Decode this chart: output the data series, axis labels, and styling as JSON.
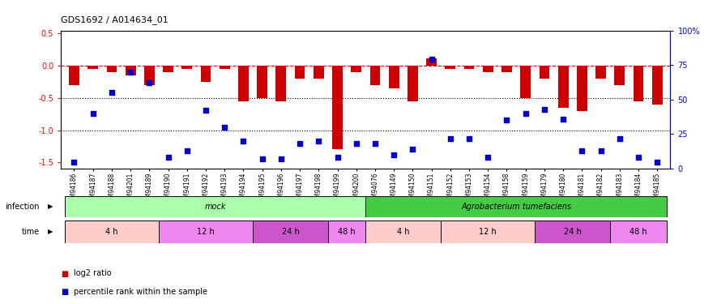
{
  "title": "GDS1692 / A014634_01",
  "samples": [
    "GSM94186",
    "GSM94187",
    "GSM94188",
    "GSM94201",
    "GSM94189",
    "GSM94190",
    "GSM94191",
    "GSM94192",
    "GSM94193",
    "GSM94194",
    "GSM94195",
    "GSM94196",
    "GSM94197",
    "GSM94198",
    "GSM94199",
    "GSM94200",
    "GSM94076",
    "GSM94149",
    "GSM94150",
    "GSM94151",
    "GSM94152",
    "GSM94153",
    "GSM94154",
    "GSM94158",
    "GSM94159",
    "GSM94179",
    "GSM94180",
    "GSM94181",
    "GSM94182",
    "GSM94183",
    "GSM94184",
    "GSM94185"
  ],
  "log2_ratio": [
    -0.3,
    -0.05,
    -0.1,
    -0.15,
    -0.3,
    -0.1,
    -0.05,
    -0.25,
    -0.05,
    -0.55,
    -0.5,
    -0.55,
    -0.2,
    -0.2,
    -1.3,
    -0.1,
    -0.3,
    -0.35,
    -0.55,
    0.12,
    -0.05,
    -0.05,
    -0.1,
    -0.1,
    -0.5,
    -0.2,
    -0.65,
    -0.7,
    -0.2,
    -0.3,
    -0.55,
    -0.6
  ],
  "percentile_rank": [
    5,
    40,
    55,
    70,
    62,
    8,
    13,
    42,
    30,
    20,
    7,
    7,
    18,
    20,
    8,
    18,
    18,
    10,
    14,
    79,
    22,
    22,
    8,
    35,
    40,
    43,
    36,
    13,
    13,
    22,
    8,
    5
  ],
  "infection_groups": [
    {
      "label": "mock",
      "start": 0,
      "end": 16,
      "color": "#aaffaa"
    },
    {
      "label": "Agrobacterium tumefaciens",
      "start": 16,
      "end": 32,
      "color": "#44cc44"
    }
  ],
  "time_groups": [
    {
      "label": "4 h",
      "start": 0,
      "end": 5,
      "color": "#ffcccc"
    },
    {
      "label": "12 h",
      "start": 5,
      "end": 10,
      "color": "#ee88ee"
    },
    {
      "label": "24 h",
      "start": 10,
      "end": 14,
      "color": "#cc55cc"
    },
    {
      "label": "48 h",
      "start": 14,
      "end": 16,
      "color": "#ee88ee"
    },
    {
      "label": "4 h",
      "start": 16,
      "end": 20,
      "color": "#ffcccc"
    },
    {
      "label": "12 h",
      "start": 20,
      "end": 25,
      "color": "#ffcccc"
    },
    {
      "label": "24 h",
      "start": 25,
      "end": 29,
      "color": "#cc55cc"
    },
    {
      "label": "48 h",
      "start": 29,
      "end": 32,
      "color": "#ee88ee"
    }
  ],
  "ylim_left": [
    -1.6,
    0.55
  ],
  "ylim_right": [
    0,
    100
  ],
  "yticks_left": [
    -1.5,
    -1.0,
    -0.5,
    0.0,
    0.5
  ],
  "yticks_right": [
    0,
    25,
    50,
    75,
    100
  ],
  "bar_color": "#CC0000",
  "dot_color": "#0000CC",
  "background_color": "#ffffff"
}
